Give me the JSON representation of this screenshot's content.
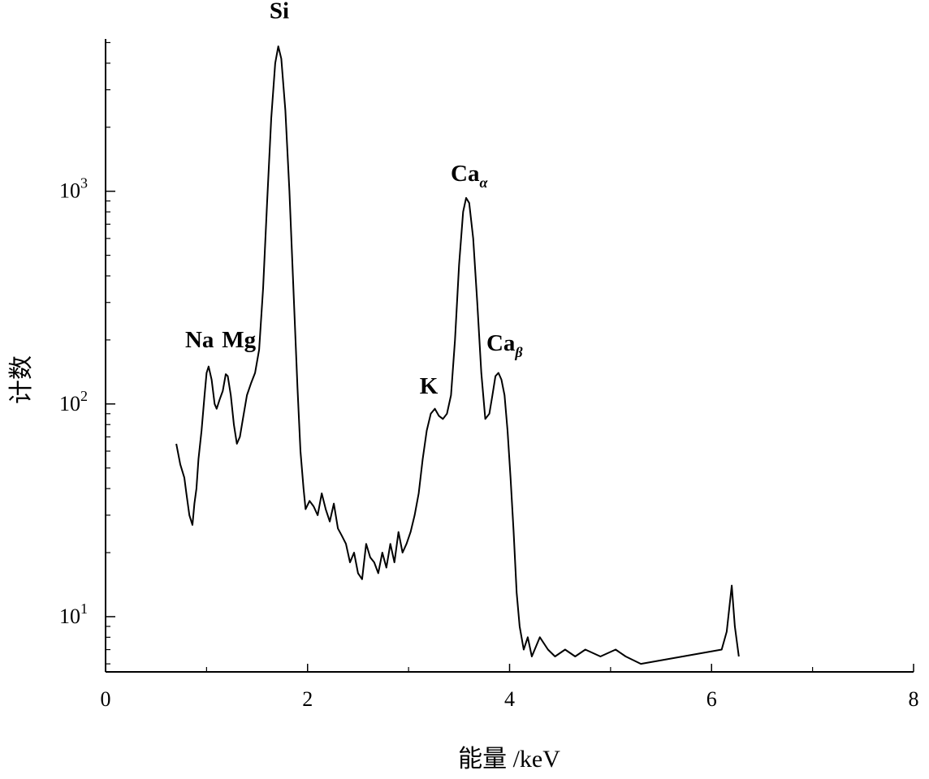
{
  "chart_data": {
    "type": "line",
    "xlabel": "能量 /keV",
    "ylabel": "计数",
    "xlim": [
      0,
      8
    ],
    "ylim": [
      5.5,
      5200
    ],
    "yscale": "log",
    "grid": false,
    "x_ticks": [
      "0",
      "2",
      "4",
      "6",
      "8"
    ],
    "y_ticks": [
      {
        "value": 10,
        "base": "10",
        "exp": "1"
      },
      {
        "value": 100,
        "base": "10",
        "exp": "2"
      },
      {
        "value": 1000,
        "base": "10",
        "exp": "3"
      }
    ],
    "annotations": [
      {
        "text": "Si",
        "sub": "",
        "x": 1.72,
        "y": 6500
      },
      {
        "text": "Na",
        "sub": "",
        "x": 0.93,
        "y": 185
      },
      {
        "text": "Mg",
        "sub": "",
        "x": 1.32,
        "y": 185
      },
      {
        "text": "Ca",
        "sub": "α",
        "x": 3.6,
        "y": 1120
      },
      {
        "text": "K",
        "sub": "",
        "x": 3.2,
        "y": 112
      },
      {
        "text": "Ca",
        "sub": "β",
        "x": 3.95,
        "y": 178
      }
    ],
    "series": [
      {
        "values": [
          [
            0.7,
            65
          ],
          [
            0.74,
            52
          ],
          [
            0.78,
            45
          ],
          [
            0.8,
            38
          ],
          [
            0.83,
            30
          ],
          [
            0.86,
            27
          ],
          [
            0.88,
            34
          ],
          [
            0.9,
            40
          ],
          [
            0.92,
            55
          ],
          [
            0.95,
            75
          ],
          [
            0.98,
            110
          ],
          [
            1.0,
            140
          ],
          [
            1.02,
            150
          ],
          [
            1.05,
            130
          ],
          [
            1.08,
            100
          ],
          [
            1.1,
            95
          ],
          [
            1.13,
            105
          ],
          [
            1.16,
            115
          ],
          [
            1.19,
            138
          ],
          [
            1.21,
            135
          ],
          [
            1.24,
            110
          ],
          [
            1.27,
            80
          ],
          [
            1.3,
            65
          ],
          [
            1.33,
            70
          ],
          [
            1.36,
            85
          ],
          [
            1.4,
            110
          ],
          [
            1.44,
            125
          ],
          [
            1.48,
            140
          ],
          [
            1.52,
            180
          ],
          [
            1.56,
            350
          ],
          [
            1.6,
            900
          ],
          [
            1.64,
            2200
          ],
          [
            1.68,
            4000
          ],
          [
            1.71,
            4800
          ],
          [
            1.74,
            4200
          ],
          [
            1.78,
            2400
          ],
          [
            1.82,
            1000
          ],
          [
            1.86,
            350
          ],
          [
            1.9,
            120
          ],
          [
            1.93,
            60
          ],
          [
            1.96,
            40
          ],
          [
            1.98,
            32
          ],
          [
            2.02,
            35
          ],
          [
            2.06,
            33
          ],
          [
            2.1,
            30
          ],
          [
            2.14,
            38
          ],
          [
            2.18,
            32
          ],
          [
            2.22,
            28
          ],
          [
            2.26,
            34
          ],
          [
            2.3,
            26
          ],
          [
            2.34,
            24
          ],
          [
            2.38,
            22
          ],
          [
            2.42,
            18
          ],
          [
            2.46,
            20
          ],
          [
            2.5,
            16
          ],
          [
            2.54,
            15
          ],
          [
            2.58,
            22
          ],
          [
            2.62,
            19
          ],
          [
            2.66,
            18
          ],
          [
            2.7,
            16
          ],
          [
            2.74,
            20
          ],
          [
            2.78,
            17
          ],
          [
            2.82,
            22
          ],
          [
            2.86,
            18
          ],
          [
            2.9,
            25
          ],
          [
            2.94,
            20
          ],
          [
            2.98,
            22
          ],
          [
            3.02,
            25
          ],
          [
            3.06,
            30
          ],
          [
            3.1,
            38
          ],
          [
            3.14,
            55
          ],
          [
            3.18,
            75
          ],
          [
            3.22,
            90
          ],
          [
            3.26,
            95
          ],
          [
            3.3,
            88
          ],
          [
            3.34,
            85
          ],
          [
            3.38,
            90
          ],
          [
            3.42,
            110
          ],
          [
            3.46,
            200
          ],
          [
            3.5,
            450
          ],
          [
            3.54,
            800
          ],
          [
            3.57,
            930
          ],
          [
            3.6,
            880
          ],
          [
            3.64,
            600
          ],
          [
            3.68,
            300
          ],
          [
            3.72,
            140
          ],
          [
            3.76,
            85
          ],
          [
            3.8,
            90
          ],
          [
            3.83,
            110
          ],
          [
            3.86,
            135
          ],
          [
            3.89,
            140
          ],
          [
            3.92,
            130
          ],
          [
            3.95,
            110
          ],
          [
            3.98,
            75
          ],
          [
            4.01,
            45
          ],
          [
            4.04,
            25
          ],
          [
            4.07,
            13
          ],
          [
            4.1,
            9
          ],
          [
            4.14,
            7
          ],
          [
            4.18,
            8
          ],
          [
            4.22,
            6.5
          ],
          [
            4.3,
            8
          ],
          [
            4.38,
            7
          ],
          [
            4.45,
            6.5
          ],
          [
            4.55,
            7
          ],
          [
            4.65,
            6.5
          ],
          [
            4.75,
            7
          ],
          [
            4.9,
            6.5
          ],
          [
            5.05,
            7
          ],
          [
            5.15,
            6.5
          ],
          [
            5.3,
            6
          ],
          [
            6.1,
            7
          ],
          [
            6.15,
            8.5
          ],
          [
            6.2,
            14
          ],
          [
            6.23,
            9
          ],
          [
            6.27,
            6.5
          ]
        ]
      }
    ]
  }
}
